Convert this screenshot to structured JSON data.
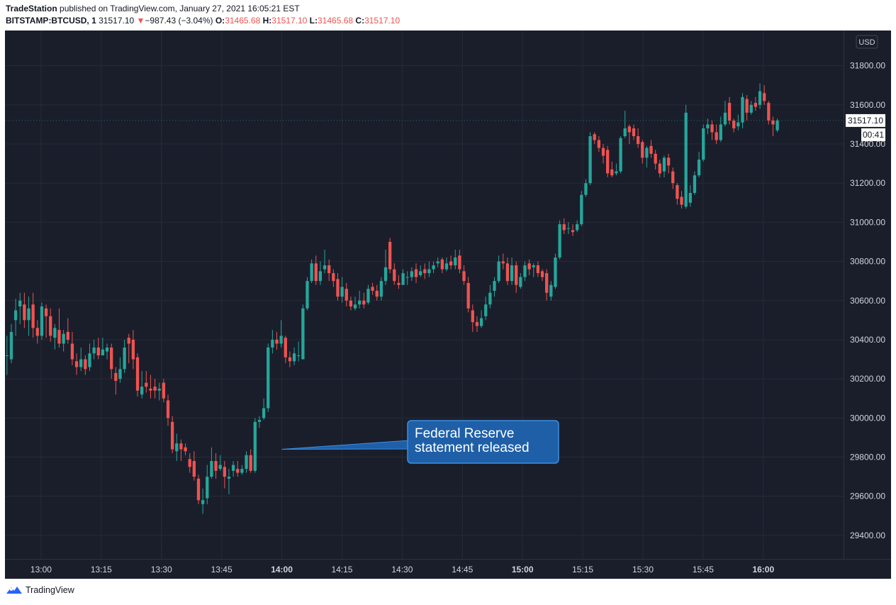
{
  "header": {
    "publisher": "TradeStation",
    "published_text": "published on TradingView.com, January 27, 2021 16:05:21 EST",
    "symbol": "BITSTAMP:BTCUSD, 1",
    "last": "31517.10",
    "change": "−987.43 (−3.04%)",
    "o_label": "O:",
    "o_value": "31465.68",
    "h_label": "H:",
    "h_value": "31517.10",
    "l_label": "L:",
    "l_value": "31465.68",
    "c_label": "C:",
    "c_value": "31517.10"
  },
  "chart_data": {
    "type": "candlestick",
    "currency_label": "USD",
    "last_price_label": "31517.10",
    "countdown_label": "00:41",
    "ylim": [
      29280,
      31980
    ],
    "y_ticks": [
      "31800.00",
      "31600.00",
      "31400.00",
      "31200.00",
      "31000.00",
      "30800.00",
      "30600.00",
      "30400.00",
      "30200.00",
      "30000.00",
      "29800.00",
      "29600.00",
      "29400.00"
    ],
    "x_ticks": [
      "13:00",
      "13:15",
      "13:30",
      "13:45",
      "14:00",
      "14:15",
      "14:30",
      "14:45",
      "15:00",
      "15:15",
      "15:30",
      "15:45",
      "16:00"
    ],
    "x_tick_minutes": [
      780,
      795,
      810,
      825,
      840,
      855,
      870,
      885,
      900,
      915,
      930,
      945,
      960
    ],
    "x_range_minutes": [
      771,
      980
    ],
    "grid": true,
    "colors": {
      "up": "#26a69a",
      "down": "#ef5350",
      "background": "#1a1e2b",
      "grid": "#262b38",
      "axis_text": "#d1d4dc",
      "annotation": "#1e5fa8"
    },
    "annotation": {
      "text_line1": "Federal Reserve",
      "text_line2": "statement released",
      "time": "14:00",
      "price": 29840
    },
    "candles": [
      [
        30320,
        30320,
        30420,
        30220
      ],
      [
        30300,
        30440,
        30480,
        30280
      ],
      [
        30500,
        30550,
        30610,
        30420
      ],
      [
        30570,
        30600,
        30640,
        30480
      ],
      [
        30580,
        30500,
        30640,
        30460
      ],
      [
        30500,
        30560,
        30620,
        30420
      ],
      [
        30580,
        30460,
        30640,
        30410
      ],
      [
        30460,
        30420,
        30500,
        30380
      ],
      [
        30420,
        30570,
        30590,
        30400
      ],
      [
        30560,
        30520,
        30580,
        30410
      ],
      [
        30520,
        30420,
        30560,
        30390
      ],
      [
        30410,
        30460,
        30480,
        30350
      ],
      [
        30450,
        30380,
        30560,
        30360
      ],
      [
        30380,
        30430,
        30450,
        30340
      ],
      [
        30440,
        30400,
        30510,
        30380
      ],
      [
        30380,
        30300,
        30440,
        30270
      ],
      [
        30290,
        30260,
        30330,
        30220
      ],
      [
        30260,
        30300,
        30360,
        30240
      ],
      [
        30300,
        30250,
        30320,
        30220
      ],
      [
        30260,
        30330,
        30380,
        30240
      ],
      [
        30330,
        30360,
        30400,
        30300
      ],
      [
        30360,
        30320,
        30410,
        30300
      ],
      [
        30320,
        30350,
        30410,
        30320
      ],
      [
        30340,
        30360,
        30380,
        30300
      ],
      [
        30360,
        30250,
        30380,
        30200
      ],
      [
        30230,
        30190,
        30260,
        30120
      ],
      [
        30200,
        30250,
        30310,
        30180
      ],
      [
        30250,
        30360,
        30400,
        30230
      ],
      [
        30410,
        30380,
        30430,
        30280
      ],
      [
        30400,
        30300,
        30450,
        30250
      ],
      [
        30310,
        30140,
        30330,
        30110
      ],
      [
        30120,
        30160,
        30240,
        30100
      ],
      [
        30180,
        30160,
        30240,
        30130
      ],
      [
        30150,
        30140,
        30220,
        30100
      ],
      [
        30160,
        30140,
        30200,
        30100
      ],
      [
        30140,
        30150,
        30180,
        30090
      ],
      [
        30180,
        30100,
        30200,
        30080
      ],
      [
        30090,
        30000,
        30120,
        29960
      ],
      [
        29980,
        29840,
        30010,
        29820
      ],
      [
        29830,
        29870,
        29920,
        29780
      ],
      [
        29870,
        29840,
        29890,
        29780
      ],
      [
        29850,
        29830,
        29870,
        29810
      ],
      [
        29790,
        29750,
        29820,
        29720
      ],
      [
        29780,
        29700,
        29830,
        29680
      ],
      [
        29690,
        29580,
        29710,
        29560
      ],
      [
        29560,
        29580,
        29640,
        29510
      ],
      [
        29590,
        29700,
        29760,
        29560
      ],
      [
        29700,
        29780,
        29850,
        29690
      ],
      [
        29780,
        29730,
        29820,
        29690
      ],
      [
        29740,
        29760,
        29810,
        29730
      ],
      [
        29750,
        29700,
        29780,
        29640
      ],
      [
        29690,
        29700,
        29740,
        29610
      ],
      [
        29730,
        29760,
        29780,
        29700
      ],
      [
        29740,
        29720,
        29780,
        29700
      ],
      [
        29720,
        29740,
        29760,
        29710
      ],
      [
        29740,
        29810,
        29830,
        29720
      ],
      [
        29810,
        29730,
        29840,
        29720
      ],
      [
        29730,
        29980,
        30000,
        29720
      ],
      [
        29980,
        29990,
        30010,
        29950
      ],
      [
        30000,
        30050,
        30100,
        29990
      ],
      [
        30050,
        30360,
        30380,
        30030
      ],
      [
        30360,
        30400,
        30450,
        30330
      ],
      [
        30400,
        30380,
        30440,
        30350
      ],
      [
        30380,
        30420,
        30500,
        30360
      ],
      [
        30410,
        30310,
        30420,
        30280
      ],
      [
        30310,
        30290,
        30340,
        30260
      ],
      [
        30290,
        30330,
        30360,
        30270
      ],
      [
        30320,
        30320,
        30390,
        30290
      ],
      [
        30300,
        30560,
        30580,
        30300
      ],
      [
        30560,
        30700,
        30720,
        30550
      ],
      [
        30700,
        30790,
        30810,
        30690
      ],
      [
        30790,
        30700,
        30830,
        30680
      ],
      [
        30700,
        30750,
        30800,
        30680
      ],
      [
        30760,
        30780,
        30860,
        30740
      ],
      [
        30780,
        30740,
        30810,
        30700
      ],
      [
        30740,
        30700,
        30760,
        30670
      ],
      [
        30710,
        30620,
        30740,
        30600
      ],
      [
        30620,
        30670,
        30720,
        30590
      ],
      [
        30660,
        30600,
        30690,
        30570
      ],
      [
        30600,
        30570,
        30620,
        30550
      ],
      [
        30560,
        30580,
        30620,
        30550
      ],
      [
        30580,
        30600,
        30650,
        30560
      ],
      [
        30600,
        30580,
        30640,
        30560
      ],
      [
        30590,
        30660,
        30680,
        30580
      ],
      [
        30670,
        30650,
        30690,
        30630
      ],
      [
        30650,
        30620,
        30680,
        30600
      ],
      [
        30620,
        30700,
        30720,
        30600
      ],
      [
        30700,
        30770,
        30860,
        30680
      ],
      [
        30900,
        30760,
        30920,
        30740
      ],
      [
        30760,
        30700,
        30790,
        30680
      ],
      [
        30690,
        30680,
        30730,
        30660
      ],
      [
        30680,
        30740,
        30760,
        30680
      ],
      [
        30720,
        30720,
        30750,
        30680
      ],
      [
        30720,
        30750,
        30770,
        30700
      ],
      [
        30760,
        30720,
        30790,
        30690
      ],
      [
        30730,
        30750,
        30780,
        30720
      ],
      [
        30760,
        30740,
        30790,
        30710
      ],
      [
        30740,
        30760,
        30800,
        30720
      ],
      [
        30760,
        30780,
        30800,
        30740
      ],
      [
        30790,
        30800,
        30820,
        30770
      ],
      [
        30810,
        30760,
        30820,
        30740
      ],
      [
        30760,
        30790,
        30820,
        30750
      ],
      [
        30800,
        30780,
        30830,
        30760
      ],
      [
        30780,
        30820,
        30860,
        30760
      ],
      [
        30830,
        30760,
        30860,
        30740
      ],
      [
        30750,
        30700,
        30780,
        30680
      ],
      [
        30690,
        30560,
        30720,
        30540
      ],
      [
        30550,
        30490,
        30580,
        30440
      ],
      [
        30490,
        30470,
        30520,
        30440
      ],
      [
        30470,
        30510,
        30550,
        30460
      ],
      [
        30520,
        30580,
        30620,
        30500
      ],
      [
        30580,
        30640,
        30680,
        30560
      ],
      [
        30650,
        30700,
        30720,
        30620
      ],
      [
        30700,
        30800,
        30830,
        30690
      ],
      [
        30800,
        30790,
        30840,
        30760
      ],
      [
        30790,
        30700,
        30820,
        30680
      ],
      [
        30700,
        30780,
        30820,
        30680
      ],
      [
        30780,
        30680,
        30800,
        30640
      ],
      [
        30670,
        30720,
        30740,
        30660
      ],
      [
        30720,
        30780,
        30800,
        30700
      ],
      [
        30790,
        30760,
        30810,
        30730
      ],
      [
        30770,
        30780,
        30790,
        30720
      ],
      [
        30780,
        30740,
        30800,
        30720
      ],
      [
        30750,
        30720,
        30760,
        30700
      ],
      [
        30740,
        30640,
        30760,
        30600
      ],
      [
        30620,
        30680,
        30700,
        30600
      ],
      [
        30670,
        30820,
        30840,
        30660
      ],
      [
        30820,
        30990,
        31010,
        30810
      ],
      [
        30990,
        30960,
        31020,
        30940
      ],
      [
        30970,
        30970,
        31000,
        30940
      ],
      [
        30960,
        30950,
        30990,
        30930
      ],
      [
        30960,
        30990,
        31010,
        30950
      ],
      [
        30990,
        31140,
        31160,
        30980
      ],
      [
        31140,
        31200,
        31220,
        31130
      ],
      [
        31200,
        31440,
        31460,
        31190
      ],
      [
        31450,
        31420,
        31460,
        31400
      ],
      [
        31420,
        31380,
        31440,
        31360
      ],
      [
        31380,
        31340,
        31400,
        31300
      ],
      [
        31370,
        31250,
        31390,
        31230
      ],
      [
        31270,
        31240,
        31310,
        31230
      ],
      [
        31250,
        31260,
        31300,
        31240
      ],
      [
        31260,
        31430,
        31440,
        31250
      ],
      [
        31440,
        31480,
        31570,
        31430
      ],
      [
        31490,
        31460,
        31500,
        31400
      ],
      [
        31480,
        31440,
        31500,
        31420
      ],
      [
        31440,
        31400,
        31480,
        31380
      ],
      [
        31410,
        31330,
        31420,
        31300
      ],
      [
        31330,
        31380,
        31390,
        31280
      ],
      [
        31390,
        31350,
        31420,
        31330
      ],
      [
        31350,
        31300,
        31370,
        31270
      ],
      [
        31300,
        31250,
        31320,
        31230
      ],
      [
        31260,
        31330,
        31340,
        31230
      ],
      [
        31330,
        31290,
        31350,
        31250
      ],
      [
        31260,
        31200,
        31280,
        31170
      ],
      [
        31190,
        31120,
        31200,
        31090
      ],
      [
        31130,
        31090,
        31160,
        31070
      ],
      [
        31080,
        31560,
        31600,
        31070
      ],
      [
        31100,
        31150,
        31190,
        31080
      ],
      [
        31150,
        31240,
        31260,
        31140
      ],
      [
        31240,
        31320,
        31360,
        31230
      ],
      [
        31320,
        31480,
        31500,
        31310
      ],
      [
        31480,
        31500,
        31530,
        31450
      ],
      [
        31500,
        31460,
        31520,
        31420
      ],
      [
        31460,
        31420,
        31500,
        31400
      ],
      [
        31420,
        31500,
        31540,
        31410
      ],
      [
        31500,
        31560,
        31620,
        31490
      ],
      [
        31610,
        31520,
        31640,
        31500
      ],
      [
        31520,
        31480,
        31530,
        31460
      ],
      [
        31490,
        31510,
        31550,
        31470
      ],
      [
        31510,
        31640,
        31660,
        31480
      ],
      [
        31630,
        31560,
        31650,
        31520
      ],
      [
        31560,
        31600,
        31620,
        31550
      ],
      [
        31610,
        31590,
        31640,
        31570
      ],
      [
        31600,
        31670,
        31710,
        31580
      ],
      [
        31660,
        31620,
        31700,
        31600
      ],
      [
        31610,
        31520,
        31620,
        31500
      ],
      [
        31520,
        31500,
        31540,
        31440
      ],
      [
        31470,
        31520,
        31530,
        31460
      ]
    ]
  },
  "footer": {
    "brand": "TradingView"
  }
}
